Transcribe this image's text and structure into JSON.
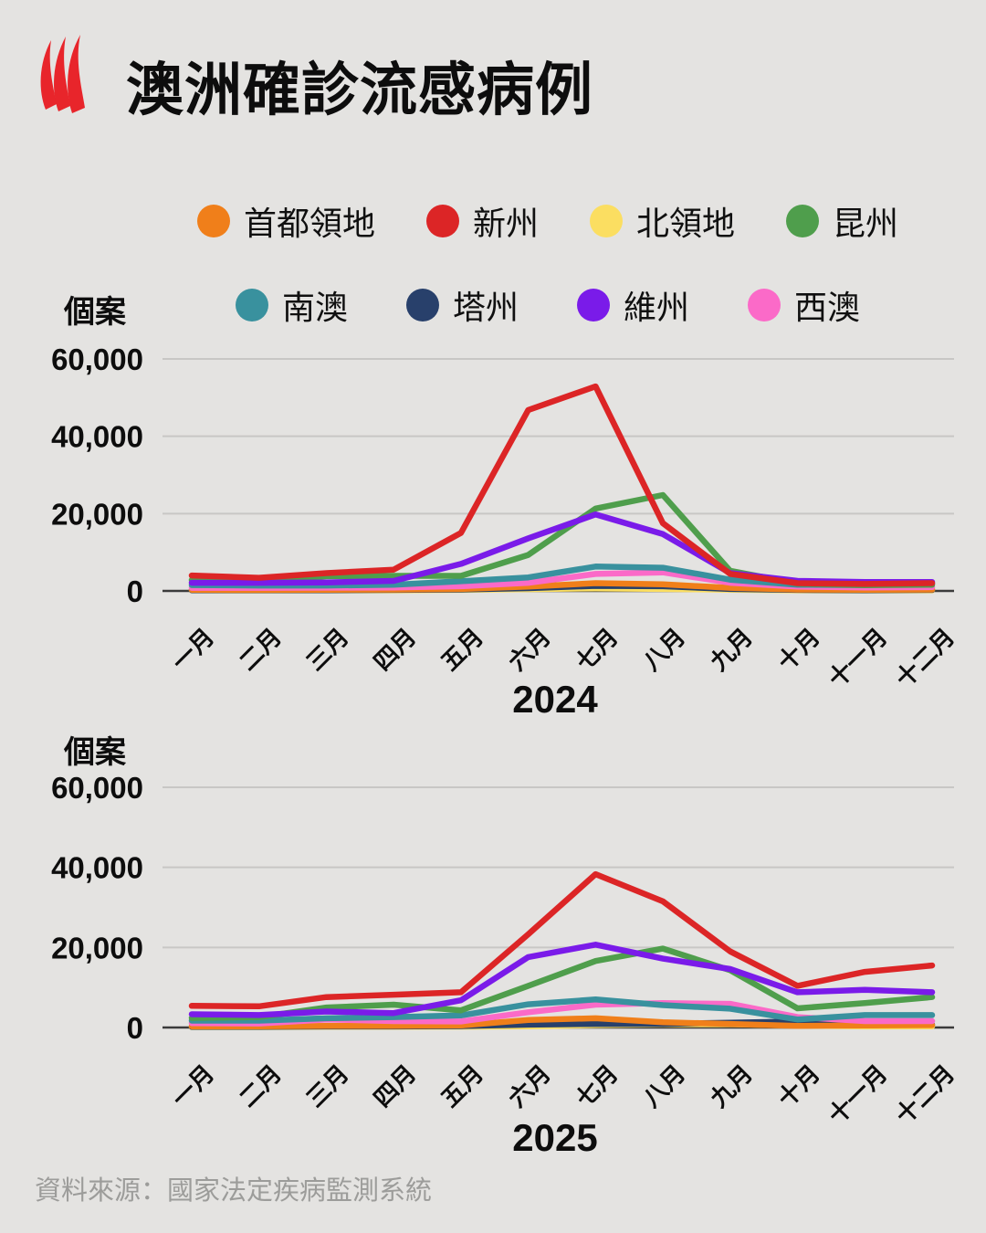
{
  "title": "澳洲確診流感病例",
  "logo": {
    "name": "sbs-logo",
    "color": "#E8252B"
  },
  "legend": {
    "rows": [
      [
        {
          "label": "首都領地",
          "color": "#F07F1A"
        },
        {
          "label": "新州",
          "color": "#DC2526"
        },
        {
          "label": "北領地",
          "color": "#FBDE61"
        },
        {
          "label": "昆州",
          "color": "#4F9E4C"
        }
      ],
      [
        {
          "label": "南澳",
          "color": "#39919E"
        },
        {
          "label": "塔州",
          "color": "#28406B"
        },
        {
          "label": "維州",
          "color": "#7A1BE9"
        },
        {
          "label": "西澳",
          "color": "#FB6AC8"
        }
      ]
    ]
  },
  "source": "資料來源：國家法定疾病監測系統",
  "chart_data": [
    {
      "type": "line",
      "year_label": "2024",
      "ylabel": "個案",
      "ylim": [
        0,
        60000
      ],
      "grid": true,
      "yticks": [
        {
          "label": "60,000",
          "value": 60000
        },
        {
          "label": "40,000",
          "value": 40000
        },
        {
          "label": "20,000",
          "value": 20000
        },
        {
          "label": "0",
          "value": 0
        }
      ],
      "categories": [
        "一月",
        "二月",
        "三月",
        "四月",
        "五月",
        "六月",
        "七月",
        "八月",
        "九月",
        "十月",
        "十一月",
        "十二月"
      ],
      "series": [
        {
          "name": "北領地",
          "color": "#FBDE61",
          "values": [
            150,
            120,
            150,
            150,
            250,
            450,
            650,
            500,
            300,
            150,
            120,
            150
          ]
        },
        {
          "name": "塔州",
          "color": "#28406B",
          "values": [
            200,
            180,
            200,
            250,
            350,
            700,
            1300,
            1200,
            500,
            250,
            200,
            250
          ]
        },
        {
          "name": "首都領地",
          "color": "#F07F1A",
          "values": [
            300,
            250,
            300,
            350,
            500,
            1100,
            2000,
            1700,
            800,
            350,
            300,
            350
          ]
        },
        {
          "name": "西澳",
          "color": "#FB6AC8",
          "values": [
            800,
            800,
            850,
            900,
            1200,
            2100,
            4400,
            4800,
            2100,
            1100,
            900,
            1000
          ]
        },
        {
          "name": "南澳",
          "color": "#39919E",
          "values": [
            1500,
            1400,
            1400,
            1600,
            2500,
            3500,
            6300,
            6000,
            2900,
            1600,
            1500,
            1900
          ]
        },
        {
          "name": "昆州",
          "color": "#4F9E4C",
          "values": [
            2800,
            2600,
            3800,
            3900,
            3900,
            9300,
            21300,
            24800,
            5200,
            1900,
            1500,
            1600
          ]
        },
        {
          "name": "維州",
          "color": "#7A1BE9",
          "values": [
            2100,
            2100,
            2200,
            2600,
            7000,
            13600,
            19800,
            14700,
            4600,
            2600,
            2300,
            2300
          ]
        },
        {
          "name": "新州",
          "color": "#DC2526",
          "values": [
            4000,
            3400,
            4600,
            5500,
            15000,
            46800,
            52900,
            17500,
            4400,
            2000,
            1800,
            2000
          ]
        }
      ]
    },
    {
      "type": "line",
      "year_label": "2025",
      "ylabel": "個案",
      "ylim": [
        0,
        60000
      ],
      "grid": true,
      "yticks": [
        {
          "label": "60,000",
          "value": 60000
        },
        {
          "label": "40,000",
          "value": 40000
        },
        {
          "label": "20,000",
          "value": 20000
        },
        {
          "label": "0",
          "value": 0
        }
      ],
      "categories": [
        "一月",
        "二月",
        "三月",
        "四月",
        "五月",
        "六月",
        "七月",
        "八月",
        "九月",
        "十月",
        "十一月",
        "十二月"
      ],
      "series": [
        {
          "name": "北領地",
          "color": "#FBDE61",
          "values": [
            100,
            100,
            150,
            150,
            200,
            300,
            600,
            800,
            800,
            500,
            250,
            300
          ]
        },
        {
          "name": "塔州",
          "color": "#28406B",
          "values": [
            150,
            150,
            250,
            250,
            350,
            700,
            900,
            900,
            1200,
            1500,
            600,
            700
          ]
        },
        {
          "name": "首都領地",
          "color": "#F07F1A",
          "values": [
            300,
            300,
            400,
            400,
            500,
            1900,
            2300,
            1300,
            900,
            400,
            500,
            600
          ]
        },
        {
          "name": "西澳",
          "color": "#FB6AC8",
          "values": [
            1100,
            1000,
            2000,
            1600,
            1500,
            3800,
            5700,
            6100,
            5900,
            2600,
            1600,
            1600
          ]
        },
        {
          "name": "南澳",
          "color": "#39919E",
          "values": [
            1700,
            1700,
            2300,
            2600,
            3000,
            5800,
            7000,
            5600,
            4700,
            2000,
            3100,
            3100
          ]
        },
        {
          "name": "昆州",
          "color": "#4F9E4C",
          "values": [
            2400,
            2600,
            5000,
            5700,
            4300,
            10400,
            16600,
            19700,
            14300,
            4800,
            6100,
            7600
          ]
        },
        {
          "name": "維州",
          "color": "#7A1BE9",
          "values": [
            3300,
            3100,
            4000,
            3600,
            6800,
            17600,
            20700,
            17200,
            14600,
            8800,
            9400,
            8800
          ]
        },
        {
          "name": "新州",
          "color": "#DC2526",
          "values": [
            5400,
            5300,
            7600,
            8200,
            8800,
            23300,
            38300,
            31500,
            19000,
            10400,
            13900,
            15500
          ]
        }
      ]
    }
  ]
}
